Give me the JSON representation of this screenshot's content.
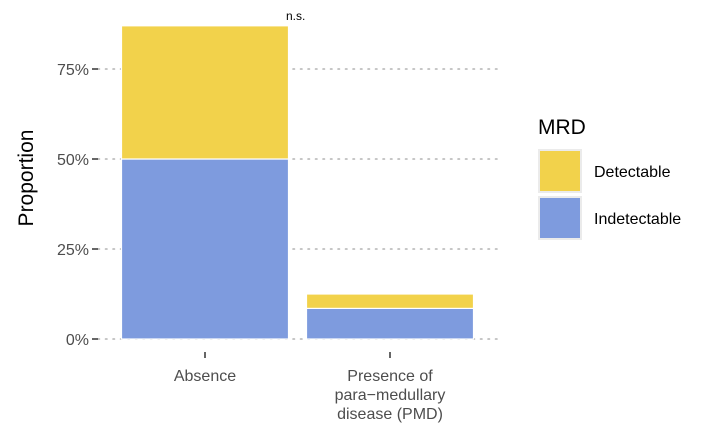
{
  "chart_data": {
    "type": "bar",
    "stacked": true,
    "categories": [
      "Absence",
      "Presence of\npara−medullary\ndisease (PMD)"
    ],
    "series": [
      {
        "name": "Indetectable",
        "color": "#7E9BDE",
        "values": [
          0.5,
          0.085
        ]
      },
      {
        "name": "Detectable",
        "color": "#F2D24B",
        "values": [
          0.37,
          0.04
        ]
      }
    ],
    "ylabel": "Proportion",
    "xlabel": "",
    "ylim": [
      0,
      0.875
    ],
    "yticks": [
      "0%",
      "25%",
      "50%",
      "75%"
    ],
    "ytick_values": [
      0,
      0.25,
      0.5,
      0.75
    ],
    "grid": "horizontal dotted",
    "legend": {
      "title": "MRD",
      "placement": "right"
    },
    "annotation": "n.s."
  }
}
